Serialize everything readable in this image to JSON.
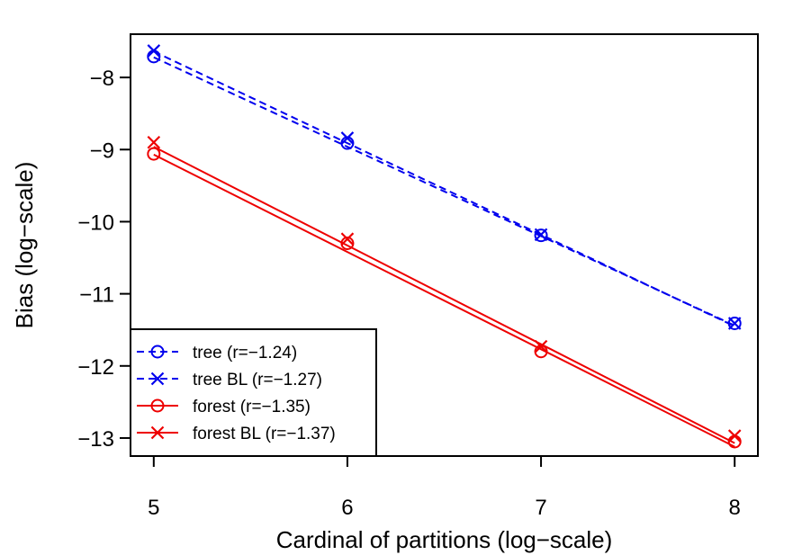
{
  "chart_data": {
    "type": "line",
    "title": "",
    "xlabel": "Cardinal of partitions (log−scale)",
    "ylabel": "Bias (log−scale)",
    "xlim": [
      4.88,
      8.12
    ],
    "ylim": [
      -13.25,
      -7.4
    ],
    "x_ticks": [
      5,
      6,
      7,
      8
    ],
    "x_tick_labels": [
      "5",
      "6",
      "7",
      "8"
    ],
    "y_ticks": [
      -8,
      -9,
      -10,
      -11,
      -12,
      -13
    ],
    "y_tick_labels": [
      "−8",
      "−9",
      "−10",
      "−11",
      "−12",
      "−13"
    ],
    "legend_position": "bottom-left",
    "series": [
      {
        "name": "tree (r=−1.24)",
        "color": "#0000ee",
        "line": "dashed",
        "marker": "circle",
        "x": [
          5,
          6,
          7,
          8
        ],
        "points": [
          -7.71,
          -8.91,
          -10.19,
          -11.41
        ],
        "fit": [
          -7.72,
          -8.96,
          -10.2,
          -11.44
        ]
      },
      {
        "name": "tree BL (r=−1.27)",
        "color": "#0000ee",
        "line": "dashed",
        "marker": "cross",
        "x": [
          5,
          6,
          7,
          8
        ],
        "points": [
          -7.63,
          -8.84,
          -10.18,
          -11.41
        ],
        "fit": [
          -7.64,
          -8.91,
          -10.18,
          -11.45
        ]
      },
      {
        "name": "forest (r=−1.35)",
        "color": "#ee0000",
        "line": "solid",
        "marker": "circle",
        "x": [
          5,
          6,
          7,
          8
        ],
        "points": [
          -9.06,
          -10.3,
          -11.8,
          -13.05
        ],
        "fit": [
          -9.07,
          -10.42,
          -11.77,
          -13.12
        ]
      },
      {
        "name": "forest BL (r=−1.37)",
        "color": "#ee0000",
        "line": "solid",
        "marker": "cross",
        "x": [
          5,
          6,
          7,
          8
        ],
        "points": [
          -8.9,
          -10.24,
          -11.73,
          -12.97
        ],
        "fit": [
          -8.96,
          -10.33,
          -11.7,
          -13.07
        ]
      }
    ]
  }
}
